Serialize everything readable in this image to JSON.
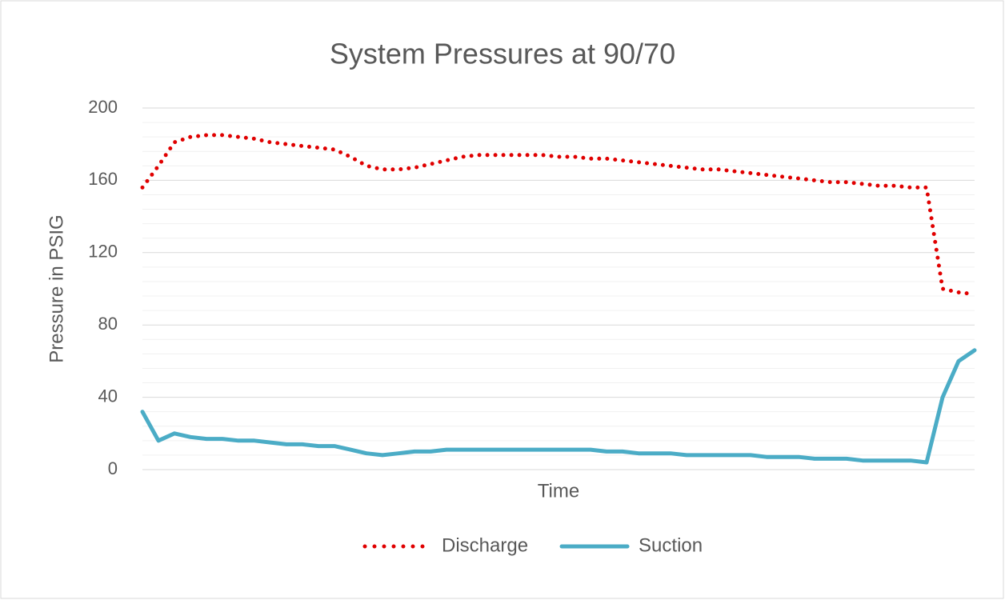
{
  "chart_data": {
    "type": "line",
    "title": "System Pressures at 90/70",
    "xlabel": "Time",
    "ylabel": "Pressure in PSIG",
    "categories": [
      null,
      null,
      null,
      null,
      null,
      null,
      null,
      null,
      null,
      null,
      null,
      null,
      null,
      null,
      null,
      null,
      null,
      null,
      null,
      null,
      null,
      null,
      null,
      null,
      null,
      null,
      null,
      null,
      null,
      null,
      null,
      null,
      null,
      null,
      null,
      null,
      null,
      null,
      null,
      null,
      null,
      null,
      null,
      null,
      null,
      null,
      null,
      null,
      null,
      null,
      null,
      null,
      null
    ],
    "series": [
      {
        "name": "Discharge",
        "color": "#e00000",
        "style": "dotted",
        "values": [
          156,
          168,
          181,
          184,
          185,
          185,
          184,
          183,
          181,
          180,
          179,
          178,
          177,
          173,
          168,
          166,
          166,
          167,
          169,
          171,
          173,
          174,
          174,
          174,
          174,
          174,
          173,
          173,
          172,
          172,
          171,
          170,
          169,
          168,
          167,
          166,
          166,
          165,
          164,
          163,
          162,
          161,
          160,
          159,
          159,
          158,
          157,
          157,
          156,
          156,
          100,
          98,
          97
        ]
      },
      {
        "name": "Suction",
        "color": "#4bacc6",
        "style": "solid",
        "values": [
          32,
          16,
          20,
          18,
          17,
          17,
          16,
          16,
          15,
          14,
          14,
          13,
          13,
          11,
          9,
          8,
          9,
          10,
          10,
          11,
          11,
          11,
          11,
          11,
          11,
          11,
          11,
          11,
          11,
          10,
          10,
          9,
          9,
          9,
          8,
          8,
          8,
          8,
          8,
          7,
          7,
          7,
          6,
          6,
          6,
          5,
          5,
          5,
          5,
          4,
          40,
          60,
          66
        ]
      }
    ],
    "ylim": [
      0,
      200
    ],
    "yticks": [
      0,
      40,
      80,
      120,
      160,
      200
    ],
    "yminorticks": [
      8,
      16,
      24,
      32,
      48,
      56,
      64,
      72,
      88,
      96,
      104,
      112,
      128,
      136,
      144,
      152,
      168,
      176,
      184,
      192
    ],
    "grid": true,
    "legend": "bottom"
  }
}
